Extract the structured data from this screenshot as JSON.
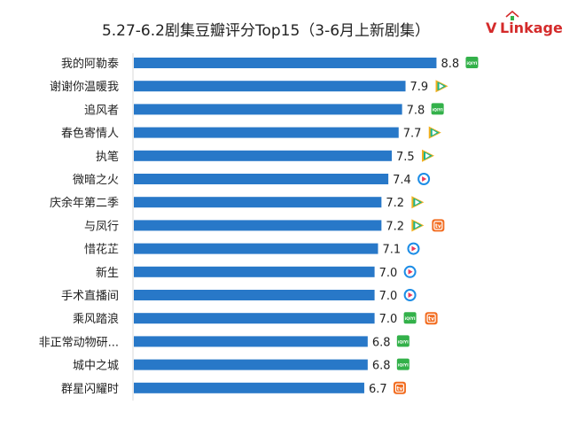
{
  "title": "5.27-6.2剧集豆瓣评分Top15（3-6月上新剧集）",
  "logo": {
    "brand_v": "V",
    "brand_rest": "Linkage"
  },
  "colors": {
    "bar": "#2878c8",
    "iqiyi": "#33b14a",
    "tencent_teal": "#1cb58a",
    "tencent_yellow": "#f2b01e",
    "youku_blue": "#1d8de6",
    "youku_red": "#ec3c5a",
    "mgtv": "#f26d21",
    "logo_red": "#d42a2a"
  },
  "chart_data": {
    "type": "bar",
    "orientation": "horizontal",
    "title": "5.27-6.2剧集豆瓣评分Top15（3-6月上新剧集）",
    "xlim": [
      0,
      10
    ],
    "categories": [
      "我的阿勒泰",
      "谢谢你温暖我",
      "追风者",
      "春色寄情人",
      "执笔",
      "微暗之火",
      "庆余年第二季",
      "与凤行",
      "惜花芷",
      "新生",
      "手术直播间",
      "乘风踏浪",
      "非正常动物研...",
      "城中之城",
      "群星闪耀时"
    ],
    "values": [
      8.8,
      7.9,
      7.8,
      7.7,
      7.5,
      7.4,
      7.2,
      7.2,
      7.1,
      7.0,
      7.0,
      7.0,
      6.8,
      6.8,
      6.7
    ],
    "labels": [
      "8.8",
      "7.9",
      "7.8",
      "7.7",
      "7.5",
      "7.4",
      "7.2",
      "7.2",
      "7.1",
      "7.0",
      "7.0",
      "7.0",
      "6.8",
      "6.8",
      "6.7"
    ],
    "platforms": [
      [
        "iqiyi"
      ],
      [
        "tencent"
      ],
      [
        "iqiyi"
      ],
      [
        "tencent"
      ],
      [
        "tencent"
      ],
      [
        "youku"
      ],
      [
        "tencent"
      ],
      [
        "tencent",
        "mgtv"
      ],
      [
        "youku"
      ],
      [
        "youku"
      ],
      [
        "youku"
      ],
      [
        "iqiyi",
        "mgtv"
      ],
      [
        "iqiyi"
      ],
      [
        "iqiyi"
      ],
      [
        "mgtv"
      ]
    ],
    "icon_text": {
      "iqiyi": "iQIYI",
      "mgtv": "tv"
    }
  }
}
